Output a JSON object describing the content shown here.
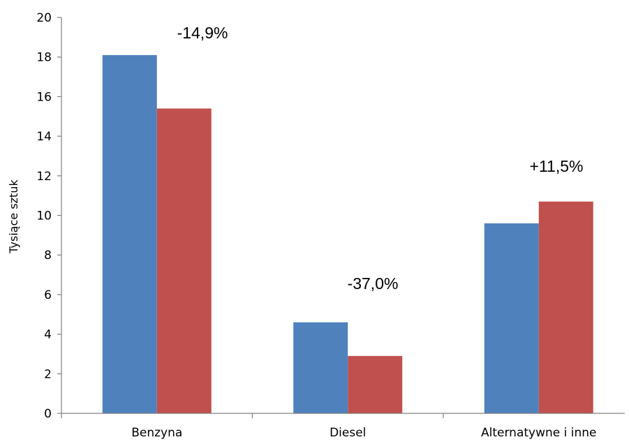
{
  "chart_data": {
    "type": "bar",
    "title": "",
    "xlabel": "",
    "ylabel": "Tysiące sztuk",
    "categories": [
      "Benzyna",
      "Diesel",
      "Alternatywne i inne"
    ],
    "series": [
      {
        "values": [
          18.1,
          4.6,
          9.6
        ],
        "color": "#4F81BD"
      },
      {
        "values": [
          15.4,
          2.9,
          10.7
        ],
        "color": "#C0504D"
      }
    ],
    "annotations": [
      "-14,9%",
      "-37,0%",
      "+11,5%"
    ],
    "ylim": [
      0,
      20
    ],
    "yticks": [
      0,
      2,
      4,
      6,
      8,
      10,
      12,
      14,
      16,
      18,
      20
    ],
    "grid": false,
    "legend": "none"
  }
}
